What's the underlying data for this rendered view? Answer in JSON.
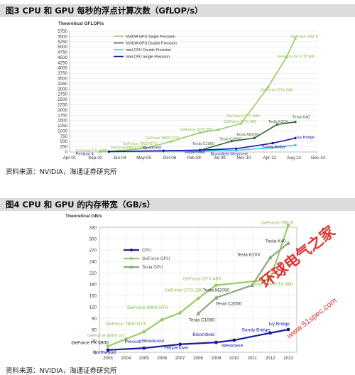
{
  "figure3": {
    "title": "图3  CPU 和 GPU 每秒的浮点计算次数（GfLOP/s）",
    "source": "资料来源：NVIDIA，海通证券研究所"
  },
  "figure4": {
    "title": "图4  CPU 和 GPU 的内存带宽（GB/s）",
    "source": "资料来源：NVIDIA，海通证券研究所"
  },
  "watermark": {
    "line1": "环球电气之家",
    "line2": "www.51spec.com",
    "color": "#d92020"
  },
  "colors": {
    "gpu_light": "#99cc66",
    "gpu_dark": "#336633",
    "cpu_blue": "#1a1a99",
    "cpu_light": "#33ccee",
    "tesla_gray": "#8aaa77",
    "label_green": "#88bb44"
  },
  "chart_data": [
    {
      "type": "line",
      "title": "",
      "ylabel": "Theoretical GFLOP/s",
      "xlabel": "",
      "ylim": [
        0,
        5750
      ],
      "yticks": [
        0,
        250,
        500,
        750,
        1000,
        1250,
        1500,
        1750,
        2000,
        2250,
        2500,
        2750,
        3000,
        3250,
        3500,
        3750,
        4000,
        4250,
        4500,
        4750,
        5000,
        5250,
        5500,
        5750
      ],
      "xticks": [
        "Apr-01",
        "Sep-02",
        "Jan-04",
        "May-05",
        "Oct-06",
        "Feb-08",
        "Jul-09",
        "Nov-10",
        "Apr-12",
        "Aug-13",
        "Dec-14"
      ],
      "x_is_date": true,
      "x_range": [
        "2001-04",
        "2014-12"
      ],
      "legend": [
        "NVIDIA GPU Single Precision",
        "NVIDIA GPU Double Precision",
        "Intel CPU Double Precision",
        "Intel CPU Single Precision"
      ],
      "legend_position": "top-left",
      "series": [
        {
          "name": "NVIDIA GPU Single Precision",
          "color": "#99cc66",
          "points": [
            [
              "2002-12",
              20
            ],
            [
              "2003-12",
              60
            ],
            [
              "2005-06",
              170
            ],
            [
              "2006-11",
              500
            ],
            [
              "2008-06",
              920
            ],
            [
              "2009-06",
              1060
            ],
            [
              "2010-09",
              1350
            ],
            [
              "2012-03",
              3090
            ],
            [
              "2013-03",
              4500
            ],
            [
              "2013-09",
              5400
            ]
          ]
        },
        {
          "name": "NVIDIA GPU Double Precision",
          "color": "#336633",
          "points": [
            [
              "2008-06",
              78
            ],
            [
              "2010-03",
              515
            ],
            [
              "2011-06",
              665
            ],
            [
              "2012-09",
              1310
            ],
            [
              "2013-09",
              1430
            ]
          ]
        },
        {
          "name": "Intel CPU Double Precision",
          "color": "#33ccee",
          "points": [
            [
              "2003-06",
              10
            ],
            [
              "2006-06",
              30
            ],
            [
              "2008-06",
              45
            ],
            [
              "2010-06",
              80
            ],
            [
              "2012-06",
              210
            ],
            [
              "2013-09",
              330
            ]
          ]
        },
        {
          "name": "Intel CPU Single Precision",
          "color": "#1a1a99",
          "points": [
            [
              "2003-06",
              20
            ],
            [
              "2006-06",
              60
            ],
            [
              "2008-06",
              90
            ],
            [
              "2010-06",
              160
            ],
            [
              "2012-06",
              420
            ],
            [
              "2013-09",
              660
            ]
          ]
        }
      ],
      "annotations": [
        {
          "text": "GeForce 780 Ti",
          "x": "2013-06",
          "y": 5450,
          "color": "#88bb44"
        },
        {
          "text": "GeForce GTX TITAN",
          "x": "2012-09",
          "y": 4500,
          "color": "#88bb44"
        },
        {
          "text": "GeForce GTX 680",
          "x": "2011-10",
          "y": 2900,
          "color": "#88bb44"
        },
        {
          "text": "GeForce GTX 580",
          "x": "2009-12",
          "y": 1660,
          "color": "#88bb44"
        },
        {
          "text": "GeForce GTX 480",
          "x": "2009-10",
          "y": 1390,
          "color": "#88bb44"
        },
        {
          "text": "GeForce GTX 280",
          "x": "2007-05",
          "y": 1010,
          "color": "#88bb44"
        },
        {
          "text": "GeForce 8800 GTX",
          "x": "2005-06",
          "y": 610,
          "color": "#88bb44"
        },
        {
          "text": "GeForce 7800 GTX",
          "x": "2004-03",
          "y": 340,
          "color": "#88bb44"
        },
        {
          "text": "GeForce 6800 Ultra",
          "x": "2003-07",
          "y": 150,
          "color": "#88bb44"
        },
        {
          "text": "GeForce FX 5800",
          "x": "2001-08",
          "y": 20,
          "color": "#88bb44"
        },
        {
          "text": "Tesla K40",
          "x": "2013-07",
          "y": 1600,
          "color": "#336633"
        },
        {
          "text": "Tesla K20X",
          "x": "2012-03",
          "y": 1380,
          "color": "#336633"
        },
        {
          "text": "Tesla M2090",
          "x": "2010-06",
          "y": 780,
          "color": "#336633"
        },
        {
          "text": "Tesla C2050",
          "x": "2009-07",
          "y": 550,
          "color": "#336633"
        },
        {
          "text": "Tesla C1060",
          "x": "2008-01",
          "y": 330,
          "color": "#336633"
        },
        {
          "text": "Pentium 4",
          "x": "2001-08",
          "y": -150,
          "color": "#1a1a99"
        },
        {
          "text": "Woodcrest",
          "x": "2005-04",
          "y": 150,
          "color": "#1a1a99"
        },
        {
          "text": "Harpertown",
          "x": "2007-08",
          "y": -60,
          "color": "#1a1a99"
        },
        {
          "text": "Bloomfield",
          "x": "2009-01",
          "y": -150,
          "color": "#1a1a99"
        },
        {
          "text": "Westmere",
          "x": "2010-02",
          "y": -150,
          "color": "#1a1a99"
        },
        {
          "text": "Sandy Bridge",
          "x": "2011-11",
          "y": 180,
          "color": "#1a1a99"
        },
        {
          "text": "Ivy Bridge",
          "x": "2013-10",
          "y": 640,
          "color": "#1a1a99"
        }
      ]
    },
    {
      "type": "line",
      "title": "",
      "ylabel": "Theoretical GB/s",
      "xlabel": "",
      "ylim": [
        0,
        330
      ],
      "yticks": [
        0,
        30,
        60,
        90,
        120,
        150,
        180,
        210,
        240,
        270,
        300,
        330
      ],
      "xticks": [
        "2003",
        "2004",
        "2005",
        "2006",
        "2007",
        "2008",
        "2009",
        "2010",
        "2011",
        "2012",
        "2013"
      ],
      "legend": [
        "CPU",
        "GeForce GPU",
        "Tesla GPU"
      ],
      "legend_position": "top-left",
      "series": [
        {
          "name": "CPU",
          "color": "#1a1a99",
          "points": [
            [
              2003,
              6
            ],
            [
              2005,
              11
            ],
            [
              2007,
              21
            ],
            [
              2009,
              26
            ],
            [
              2010,
              32
            ],
            [
              2012,
              51
            ],
            [
              2013,
              60
            ]
          ]
        },
        {
          "name": "GeForce GPU",
          "color": "#99cc66",
          "points": [
            [
              2003,
              16
            ],
            [
              2004,
              35
            ],
            [
              2005,
              54
            ],
            [
              2006,
              86
            ],
            [
              2007,
              104
            ],
            [
              2008,
              142
            ],
            [
              2009,
              177
            ],
            [
              2012,
              192
            ],
            [
              2013,
              336
            ]
          ]
        },
        {
          "name": "Tesla GPU",
          "color": "#8aaa77",
          "points": [
            [
              2008,
              102
            ],
            [
              2009,
              144
            ],
            [
              2011,
              177
            ],
            [
              2012,
              250
            ],
            [
              2013,
              288
            ]
          ]
        }
      ],
      "annotations": [
        {
          "text": "GeForce 780 Ti",
          "x": 2012.4,
          "y": 338,
          "color": "#88bb44"
        },
        {
          "text": "Tesla K40",
          "x": 2012.3,
          "y": 290,
          "color": "#333333"
        },
        {
          "text": "Tesla K20X",
          "x": 2010.8,
          "y": 254,
          "color": "#333333"
        },
        {
          "text": "GeForce GTX 680",
          "x": 2012.2,
          "y": 176,
          "color": "#88bb44"
        },
        {
          "text": "GeForce GTX 480",
          "x": 2008.2,
          "y": 190,
          "color": "#88bb44"
        },
        {
          "text": "GeForce GTX 280",
          "x": 2007.2,
          "y": 160,
          "color": "#88bb44"
        },
        {
          "text": "Tesla M2090",
          "x": 2009.0,
          "y": 160,
          "color": "#333333"
        },
        {
          "text": "Tesla C2050",
          "x": 2009.7,
          "y": 125,
          "color": "#333333"
        },
        {
          "text": "Tesla C1060",
          "x": 2008.2,
          "y": 82,
          "color": "#333333"
        },
        {
          "text": "GeForce 8800 GTX",
          "x": 2005.2,
          "y": 114,
          "color": "#88bb44"
        },
        {
          "text": "GeForce 7800 GTX",
          "x": 2004.0,
          "y": 71,
          "color": "#88bb44"
        },
        {
          "text": "GeForce 6800 GT",
          "x": 2002.9,
          "y": 40,
          "color": "#88bb44"
        },
        {
          "text": "GeForce FX 5900",
          "x": 2002.0,
          "y": 22,
          "color": "#111111"
        },
        {
          "text": "Northwood",
          "x": 2002.8,
          "y": -4,
          "color": "#1a1a99"
        },
        {
          "text": "Prescott",
          "x": 2004.4,
          "y": 24,
          "color": "#1a1a99"
        },
        {
          "text": "Woodcrest",
          "x": 2005.5,
          "y": 26,
          "color": "#1a1a99"
        },
        {
          "text": "Harpertown",
          "x": 2006.8,
          "y": 8,
          "color": "#1a1a99"
        },
        {
          "text": "Bloomfield",
          "x": 2008.3,
          "y": 43,
          "color": "#1a1a99"
        },
        {
          "text": "Westmere",
          "x": 2009.9,
          "y": 14,
          "color": "#1a1a99"
        },
        {
          "text": "Sandy Bridge",
          "x": 2011.2,
          "y": 55,
          "color": "#1a1a99"
        },
        {
          "text": "Ivy Bridge",
          "x": 2012.5,
          "y": 71,
          "color": "#1a1a99"
        }
      ]
    }
  ]
}
